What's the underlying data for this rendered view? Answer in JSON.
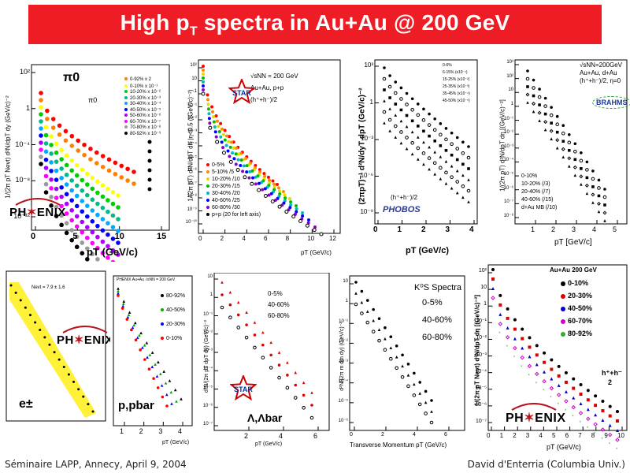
{
  "header": {
    "title_pre": "High p",
    "title_sub": "T",
    "title_post": " spectra in Au+Au @ 200 GeV",
    "bg_color": "#ee1c24"
  },
  "footer": {
    "left": "Séminaire LAPP, Annecy, April 9, 2004",
    "right": "David d'Enterria (Columbia Univ.)"
  },
  "chart_data": [
    {
      "id": "phenix-pi0",
      "type": "scatter",
      "title": "π0",
      "xlabel": "pT (GeV/c)",
      "ylabel": "1/(2π pT Nevt) d²N/dpT dy (GeV/c)⁻²",
      "log_y": true,
      "xlim": [
        0,
        15
      ],
      "x_ticks": [
        "0",
        "5",
        "10",
        "15"
      ],
      "y_ticks": [
        "10²",
        "1",
        "10⁻⁴",
        "10⁻⁸",
        "10⁻¹²"
      ],
      "logo": "PHENIX",
      "inner_label": "π0",
      "legend": [
        "0-92% x 2",
        "0-10% x 10⁻¹",
        "10-20% x 10⁻²",
        "20-30% x 10⁻³",
        "30-40% x 10⁻⁴",
        "40-50% x 10⁻⁵",
        "50-60% x 10⁻⁶",
        "60-70% x 10⁻⁷",
        "70-80% x 10⁻⁸",
        "80-92% x 10⁻⁹"
      ],
      "colors": [
        "#ff0000",
        "#ff7f00",
        "#ffff00",
        "#00cc00",
        "#00bb88",
        "#00aaff",
        "#0000ff",
        "#aa00ff",
        "#ff00ff",
        "#999999",
        "#000000"
      ]
    },
    {
      "id": "star-hadrons",
      "type": "scatter",
      "xlabel": "pT (GeV/c)",
      "ylabel": "1/(2π pT) d²N/dpT dη |η<0.5 ((GeV/c)⁻²)",
      "log_y": true,
      "xlim": [
        0,
        12
      ],
      "x_ticks": [
        "0",
        "2",
        "4",
        "6",
        "8",
        "10",
        "12"
      ],
      "y_ticks": [
        "10²",
        "10",
        "1",
        "10⁻¹",
        "10⁻²",
        "10⁻³",
        "10⁻⁴",
        "10⁻⁵",
        "10⁻⁶",
        "10⁻⁷",
        "10⁻⁸",
        "10⁻⁹",
        "10⁻¹⁰"
      ],
      "annotation": [
        "√sNN = 200 GeV",
        "Au+Au, p+p",
        "(h⁺+h⁻)/2"
      ],
      "legend": [
        "0-5%",
        "5-10% /5",
        "10-20% /10",
        "20-30% /15",
        "30-40% /20",
        "40-60% /25",
        "60-80% /30",
        "p+p (20 for left axis)"
      ],
      "colors": [
        "#ff0000",
        "#ff8800",
        "#dddd00",
        "#00bb00",
        "#00bbbb",
        "#0000ff",
        "#8800cc",
        "#000000"
      ],
      "logo": "STAR"
    },
    {
      "id": "phobos-hadrons",
      "type": "scatter",
      "xlabel": "pT (GeV/c)",
      "ylabel": "(2πpT)⁻¹ d²N/dyT dpT (GeV/c)⁻²",
      "log_y": true,
      "xlim": [
        0,
        4.5
      ],
      "x_ticks": [
        "0",
        "1",
        "2",
        "3",
        "4"
      ],
      "y_ticks": [
        "10³",
        "1",
        "10⁻³",
        "10⁻⁶",
        "10⁻⁹"
      ],
      "annotation": [
        "(h⁺+h⁻)/2"
      ],
      "legend": [
        "0-6%",
        "6-15% (x10⁻¹)",
        "15-25% (x10⁻²)",
        "25-35% (x10⁻³)",
        "35-45% (x10⁻⁴)",
        "45-50% (x10⁻⁵)"
      ],
      "logo": "PHOBOS"
    },
    {
      "id": "brahms-hadrons",
      "type": "scatter",
      "xlabel": "pT [GeV/c]",
      "ylabel": "1/(2π pT) d²N/dpT dη [(GeV/c)⁻²]",
      "log_y": true,
      "xlim": [
        0.5,
        5.5
      ],
      "x_ticks": [
        "1",
        "2",
        "3",
        "4",
        "5"
      ],
      "y_ticks": [
        "10³",
        "10²",
        "10",
        "1",
        "10⁻¹",
        "10⁻²",
        "10⁻³",
        "10⁻⁴",
        "10⁻⁵",
        "10⁻⁶",
        "10⁻⁷",
        "10⁻⁸"
      ],
      "annotation": [
        "√sNN=200GeV",
        "Au+Au, d+Au",
        "(h⁺+h⁻)/2, η=0"
      ],
      "legend": [
        "0-10%",
        "10-20% (/3)",
        "20-40% (/7)",
        "40-60% (/15)",
        "d+Au MB (/10)"
      ],
      "logo": "BRAHMS"
    },
    {
      "id": "phenix-electrons",
      "type": "scatter",
      "label": "e±",
      "logo": "PHENIX",
      "annotation": [
        "Nevt = 7.9 ± 1.6"
      ]
    },
    {
      "id": "phenix-pbar",
      "type": "scatter",
      "label": "p,pbar",
      "annotation": [
        "PHENIX Au+Au √sNN = 200 GeV"
      ],
      "xlabel": "pT (GeV/c)",
      "x_ticks": [
        "1",
        "2",
        "3",
        "4"
      ],
      "legend": [
        "80-92%",
        "40-50%",
        "20-30%",
        "0-10%"
      ],
      "colors": [
        "#000000",
        "#00aa00",
        "#0000ff",
        "#ff0000"
      ]
    },
    {
      "id": "star-lambda",
      "type": "scatter",
      "label": "Λ,Λbar",
      "xlabel": "pT (GeV/c)",
      "ylabel": "d²N/(2π pT dpT dy) (GeV/c)⁻²",
      "x_ticks": [
        "2",
        "4",
        "6"
      ],
      "y_ticks": [
        "10",
        "1",
        "10⁻¹",
        "10⁻²",
        "10⁻³",
        "10⁻⁴",
        "10⁻⁵",
        "10⁻⁶",
        "10⁻⁷"
      ],
      "legend": [
        "0-5%",
        "40-60%",
        "60-80%"
      ],
      "logo": "STAR"
    },
    {
      "id": "star-k0s",
      "type": "scatter",
      "title": "K⁰S Spectra",
      "xlabel": "Transverse Momentum pT (GeV/c)",
      "ylabel": "d²N/(2π m dm dy) (GeV/c)⁻²",
      "x_ticks": [
        "0",
        "2",
        "4",
        "6"
      ],
      "y_ticks": [
        "10",
        "1",
        "10⁻¹",
        "10⁻²",
        "10⁻³",
        "10⁻⁴",
        "10⁻⁵",
        "10⁻⁶"
      ],
      "legend": [
        "0-5%",
        "40-60%",
        "60-80%"
      ]
    },
    {
      "id": "phenix-hadrons",
      "type": "scatter",
      "title": "Au+Au 200 GeV",
      "xlabel": "pT (GeV/c)",
      "ylabel": "1/(2π pT Nevt) d²N/dpT dη [(GeV/c)⁻²]",
      "x_ticks": [
        "0",
        "1",
        "2",
        "3",
        "4",
        "5",
        "6",
        "7",
        "8",
        "9",
        "10"
      ],
      "y_ticks": [
        "10²",
        "10",
        "1",
        "10⁻¹",
        "10⁻²",
        "10⁻³",
        "10⁻⁴",
        "10⁻⁵",
        "10⁻⁶",
        "10⁻⁷"
      ],
      "legend": [
        "0-10%",
        "20-30%",
        "40-50%",
        "60-70%",
        "80-92%"
      ],
      "colors": [
        "#000000",
        "#dd0000",
        "#0000cc",
        "#cc00cc",
        "#33aa33"
      ],
      "annotation": [
        "h⁺+h⁻",
        "2"
      ],
      "logo": "PHENIX"
    }
  ]
}
